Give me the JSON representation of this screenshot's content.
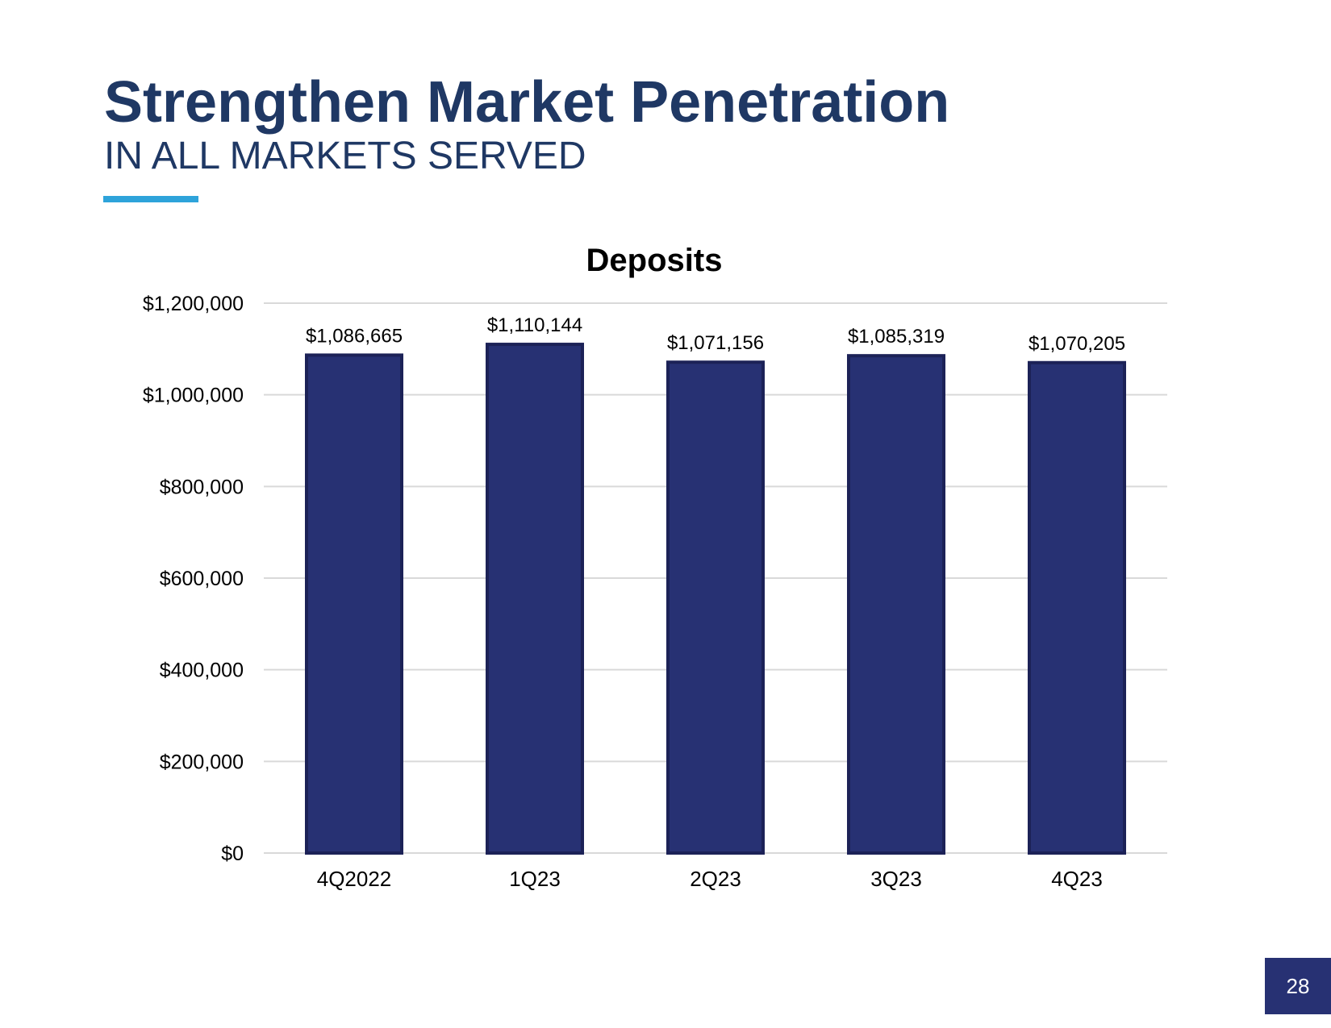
{
  "slide": {
    "title": "Strengthen Market Penetration",
    "subtitle": "IN ALL MARKETS SERVED",
    "page_number": "28",
    "colors": {
      "title": "#1f3864",
      "accent": "#2ea3da",
      "bar": "#273173",
      "page_badge": "#273173"
    }
  },
  "chart_data": {
    "type": "bar",
    "title": "Deposits",
    "xlabel": "",
    "ylabel": "",
    "categories": [
      "4Q2022",
      "1Q23",
      "2Q23",
      "3Q23",
      "4Q23"
    ],
    "values": [
      1086665,
      1110144,
      1071156,
      1085319,
      1070205
    ],
    "data_labels": [
      "$1,086,665",
      "$1,110,144",
      "$1,071,156",
      "$1,085,319",
      "$1,070,205"
    ],
    "y_ticks": [
      0,
      200000,
      400000,
      600000,
      800000,
      1000000,
      1200000
    ],
    "y_tick_labels": [
      "$0",
      "$200,000",
      "$400,000",
      "$600,000",
      "$800,000",
      "$1,000,000",
      "$1,200,000"
    ],
    "ylim": [
      0,
      1200000
    ],
    "grid": true,
    "legend": "none"
  }
}
